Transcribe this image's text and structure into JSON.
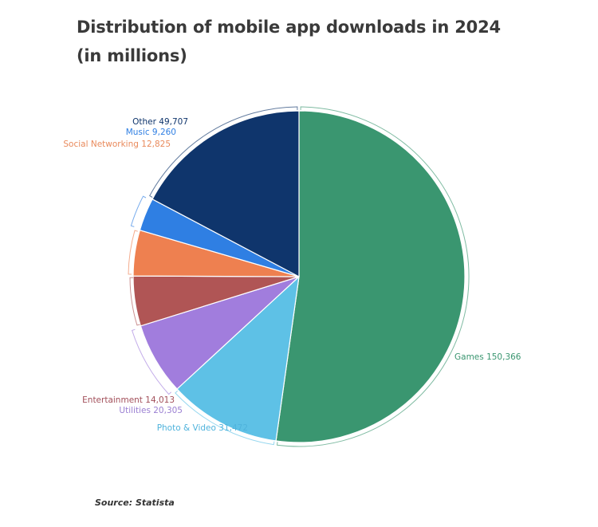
{
  "title_line1": "Distribution of mobile app downloads in 2024",
  "title_line2": "(in millions)",
  "source": "Source: Statista",
  "chart_data": {
    "type": "pie",
    "title": "Distribution of mobile app downloads in 2024 (in millions)",
    "unit": "millions",
    "start_angle": "12 o'clock, clockwise",
    "categories": [
      "Games",
      "Photo & Video",
      "Utilities",
      "Entertainment",
      "Social Networking",
      "Music",
      "Other"
    ],
    "values": [
      150366,
      31472,
      20305,
      14013,
      12825,
      9260,
      49707
    ],
    "colors": [
      "#3a9670",
      "#5ec1e6",
      "#a17ddd",
      "#b05555",
      "#ee8050",
      "#2f7fe3",
      "#0f356c"
    ],
    "labels": [
      "Games 150,366",
      "Photo & Video 31,472",
      "Utilities 20,305",
      "Entertainment 14,013",
      "Social Networking 12,825",
      "Music 9,260",
      "Other 49,707"
    ],
    "legend": "none (direct labels)",
    "source": "Source: Statista"
  }
}
